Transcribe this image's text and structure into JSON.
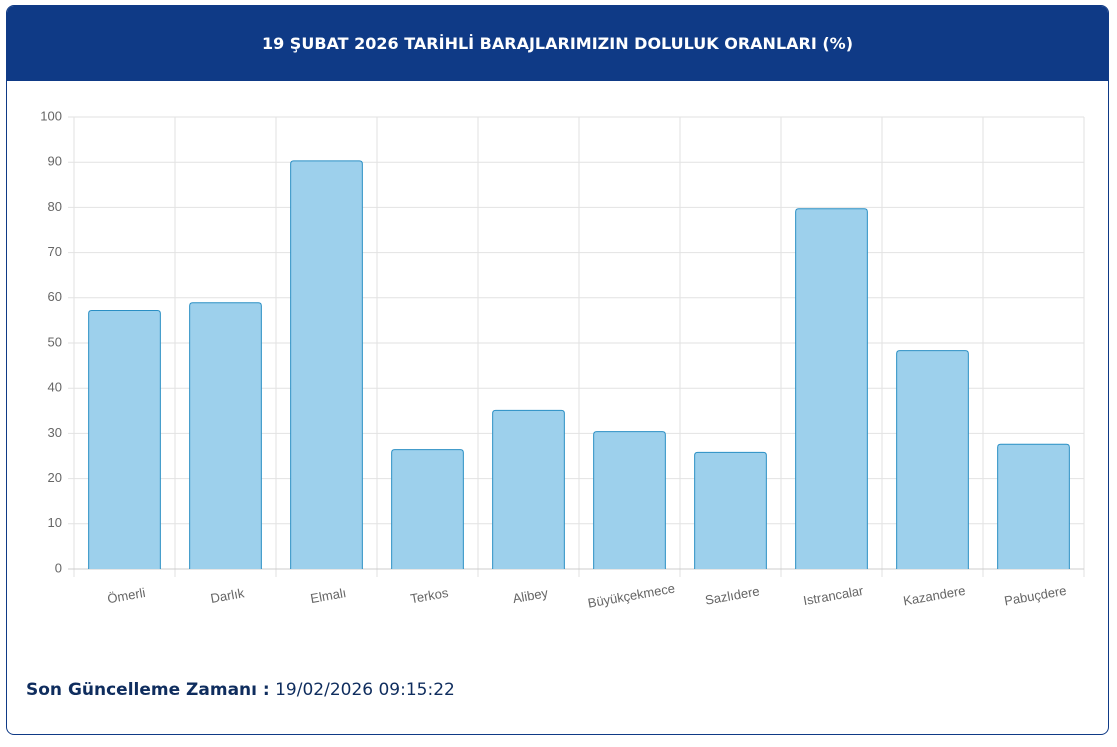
{
  "chart_data": {
    "type": "bar",
    "title": "19 ŞUBAT 2026 TARİHLİ BARAJLARIMIZIN DOLULUK ORANLARI (%)",
    "categories": [
      "Ömerli",
      "Darlık",
      "Elmalı",
      "Terkos",
      "Alibey",
      "Büyükçekmece",
      "Sazlıdere",
      "Istrancalar",
      "Kazandere",
      "Pabuçdere"
    ],
    "values": [
      57.2,
      58.9,
      90.3,
      26.4,
      35.1,
      30.4,
      25.8,
      79.7,
      48.3,
      27.6
    ],
    "color": "#9dd0ec",
    "border_color": "#2a8fc4",
    "ylim": [
      0,
      100
    ],
    "yticks": [
      0,
      10,
      20,
      30,
      40,
      50,
      60,
      70,
      80,
      90,
      100
    ],
    "grid": true
  },
  "footer": {
    "label": "Son Güncelleme Zamanı :",
    "value": "19/02/2026 09:15:22"
  }
}
